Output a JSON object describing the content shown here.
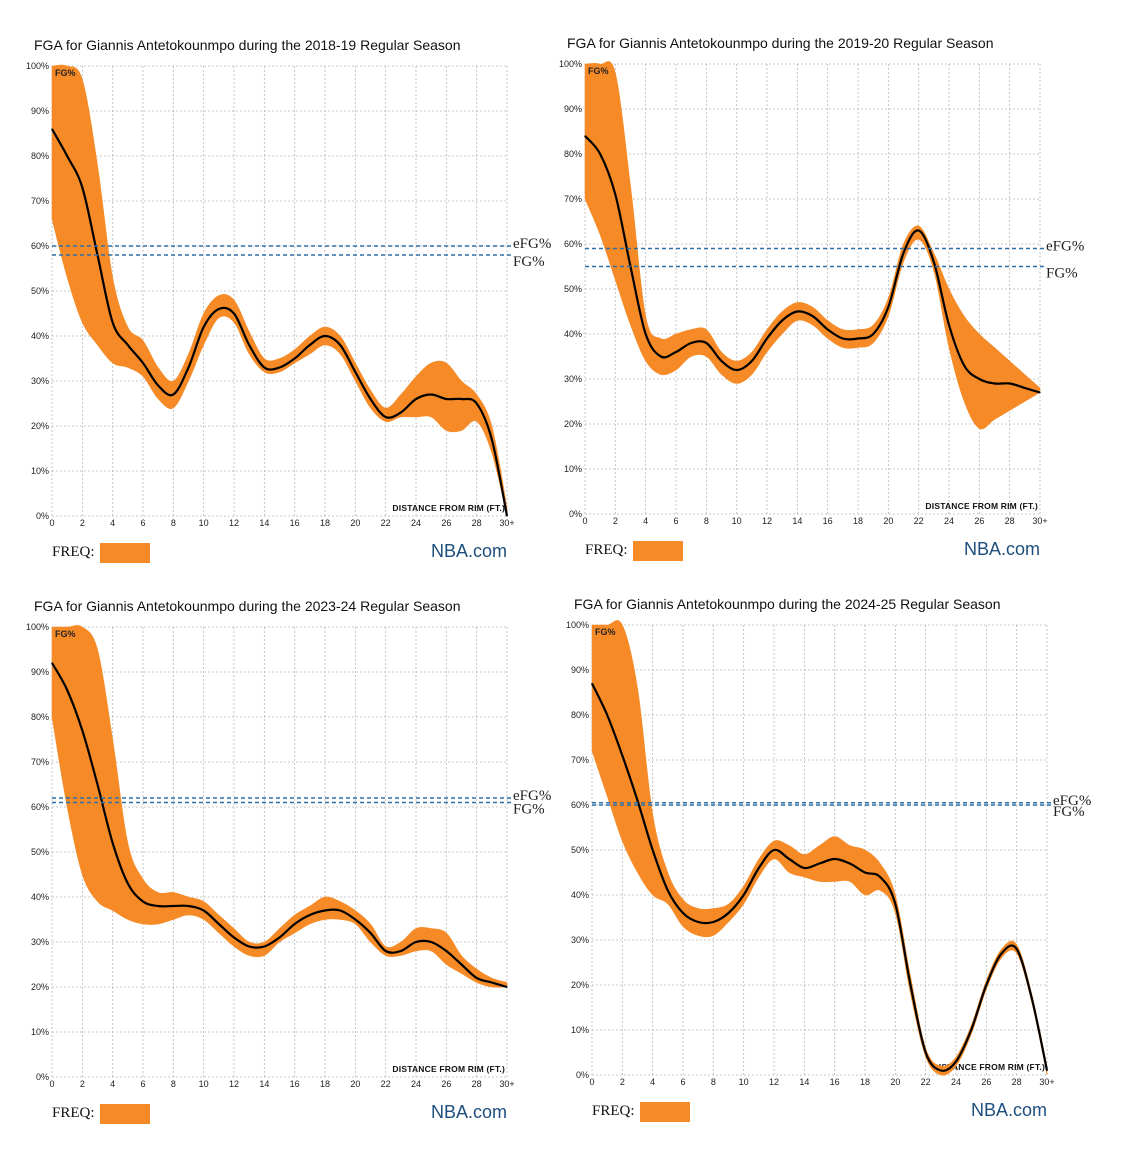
{
  "chart_data": [
    {
      "type": "line",
      "title": "FGA for Giannis Antetokounmpo during the 2018-19 Regular Season",
      "xlabel": "DISTANCE FROM RIM (FT.)",
      "ylabel": "",
      "band_label": "FG%",
      "xlim": [
        0,
        30
      ],
      "ylim": [
        0,
        100
      ],
      "x_ticks": [
        "0",
        "2",
        "4",
        "6",
        "8",
        "10",
        "12",
        "14",
        "16",
        "18",
        "20",
        "22",
        "24",
        "26",
        "28",
        "30+"
      ],
      "y_ticks": [
        "0%",
        "10%",
        "20%",
        "30%",
        "40%",
        "50%",
        "60%",
        "70%",
        "80%",
        "90%",
        "100%"
      ],
      "reference_lines": [
        {
          "label": "eFG%",
          "value": 60
        },
        {
          "label": "FG%",
          "value": 58
        }
      ],
      "series": [
        {
          "x": [
            0,
            1,
            2,
            3,
            4,
            5,
            6,
            7,
            8,
            9,
            10,
            11,
            12,
            13,
            14,
            15,
            16,
            17,
            18,
            19,
            20,
            21,
            22,
            23,
            24,
            25,
            26,
            27,
            28,
            29,
            30
          ],
          "values": [
            86,
            80,
            73,
            58,
            43,
            38,
            34,
            29,
            27,
            33,
            42,
            46,
            45,
            38,
            33,
            33,
            35,
            38,
            40,
            38,
            32,
            26,
            22,
            23,
            26,
            27,
            26,
            26,
            25,
            17,
            0
          ],
          "upper": [
            100,
            100,
            97,
            78,
            53,
            42,
            39,
            33,
            30,
            36,
            45,
            49,
            48,
            41,
            35,
            35,
            37,
            40,
            42,
            40,
            34,
            28,
            24,
            27,
            31,
            34,
            34,
            30,
            27,
            20,
            2
          ],
          "lower": [
            66,
            53,
            43,
            38,
            34,
            33,
            31,
            26,
            24,
            30,
            38,
            44,
            43,
            36,
            32,
            32,
            34,
            36,
            38,
            36,
            30,
            24,
            21,
            22,
            22,
            22,
            19,
            19,
            21,
            14,
            0
          ]
        }
      ],
      "legend": {
        "freq_label": "FREQ:",
        "brand": "NBA.com"
      }
    },
    {
      "type": "line",
      "title": "FGA for Giannis Antetokounmpo during the 2019-20 Regular Season",
      "xlabel": "DISTANCE FROM RIM (FT.)",
      "ylabel": "",
      "band_label": "FG%",
      "xlim": [
        0,
        30
      ],
      "ylim": [
        0,
        100
      ],
      "x_ticks": [
        "0",
        "2",
        "4",
        "6",
        "8",
        "10",
        "12",
        "14",
        "16",
        "18",
        "20",
        "22",
        "24",
        "26",
        "28",
        "30+"
      ],
      "y_ticks": [
        "0%",
        "10%",
        "20%",
        "30%",
        "40%",
        "50%",
        "60%",
        "70%",
        "80%",
        "90%",
        "100%"
      ],
      "reference_lines": [
        {
          "label": "eFG%",
          "value": 59
        },
        {
          "label": "FG%",
          "value": 55
        }
      ],
      "series": [
        {
          "x": [
            0,
            1,
            2,
            3,
            4,
            5,
            6,
            7,
            8,
            9,
            10,
            11,
            12,
            13,
            14,
            15,
            16,
            17,
            18,
            19,
            20,
            21,
            22,
            23,
            24,
            25,
            26,
            27,
            28,
            29,
            30
          ],
          "values": [
            84,
            80,
            71,
            55,
            40,
            35,
            36,
            38,
            38,
            34,
            32,
            34,
            39,
            43,
            45,
            44,
            41,
            39,
            39,
            40,
            46,
            58,
            63,
            56,
            42,
            33,
            30,
            29,
            29,
            28,
            27
          ],
          "upper": [
            100,
            100,
            98,
            73,
            44,
            39,
            40,
            41,
            41,
            36,
            34,
            36,
            41,
            45,
            47,
            46,
            43,
            41,
            41,
            42,
            48,
            60,
            64,
            58,
            50,
            44,
            40,
            37,
            34,
            31,
            28
          ],
          "lower": [
            70,
            62,
            52,
            42,
            34,
            31,
            32,
            35,
            35,
            31,
            29,
            31,
            36,
            40,
            43,
            42,
            39,
            37,
            37,
            38,
            44,
            56,
            61,
            54,
            37,
            25,
            19,
            21,
            23,
            25,
            27
          ]
        }
      ],
      "legend": {
        "freq_label": "FREQ:",
        "brand": "NBA.com"
      }
    },
    {
      "type": "line",
      "title": "FGA for Giannis Antetokounmpo during the 2023-24 Regular Season",
      "xlabel": "DISTANCE FROM RIM (FT.)",
      "ylabel": "",
      "band_label": "FG%",
      "xlim": [
        0,
        30
      ],
      "ylim": [
        0,
        100
      ],
      "x_ticks": [
        "0",
        "2",
        "4",
        "6",
        "8",
        "10",
        "12",
        "14",
        "16",
        "18",
        "20",
        "22",
        "24",
        "26",
        "28",
        "30+"
      ],
      "y_ticks": [
        "0%",
        "10%",
        "20%",
        "30%",
        "40%",
        "50%",
        "60%",
        "70%",
        "80%",
        "90%",
        "100%"
      ],
      "reference_lines": [
        {
          "label": "eFG%",
          "value": 62
        },
        {
          "label": "FG%",
          "value": 61
        }
      ],
      "series": [
        {
          "x": [
            0,
            1,
            2,
            3,
            4,
            5,
            6,
            7,
            8,
            9,
            10,
            11,
            12,
            13,
            14,
            15,
            16,
            17,
            18,
            19,
            20,
            21,
            22,
            23,
            24,
            25,
            26,
            27,
            28,
            29,
            30
          ],
          "values": [
            92,
            86,
            77,
            65,
            52,
            43,
            39,
            38,
            38,
            38,
            37,
            34,
            31,
            29,
            29,
            31,
            34,
            36,
            37,
            37,
            35,
            32,
            28,
            28,
            30,
            30,
            28,
            25,
            22,
            21,
            20
          ],
          "upper": [
            100,
            100,
            100,
            95,
            75,
            52,
            44,
            41,
            41,
            40,
            39,
            36,
            33,
            30,
            30,
            33,
            36,
            38,
            40,
            39,
            37,
            34,
            29,
            30,
            33,
            33,
            32,
            27,
            24,
            22,
            21
          ],
          "lower": [
            80,
            60,
            45,
            39,
            37,
            35,
            34,
            34,
            35,
            36,
            35,
            32,
            29,
            27,
            27,
            30,
            32,
            34,
            35,
            35,
            34,
            30,
            27,
            27,
            28,
            28,
            25,
            23,
            21,
            20,
            20
          ]
        }
      ],
      "legend": {
        "freq_label": "FREQ:",
        "brand": "NBA.com"
      }
    },
    {
      "type": "line",
      "title": "FGA for Giannis Antetokounmpo during the 2024-25 Regular Season",
      "xlabel": "DISTANCE FROM RIM (FT.)",
      "ylabel": "",
      "band_label": "FG%",
      "xlim": [
        0,
        30
      ],
      "ylim": [
        0,
        100
      ],
      "x_ticks": [
        "0",
        "2",
        "4",
        "6",
        "8",
        "10",
        "12",
        "14",
        "16",
        "18",
        "20",
        "22",
        "24",
        "26",
        "28",
        "30+"
      ],
      "y_ticks": [
        "0%",
        "10%",
        "20%",
        "30%",
        "40%",
        "50%",
        "60%",
        "70%",
        "80%",
        "90%",
        "100%"
      ],
      "reference_lines": [
        {
          "label": "eFG%",
          "value": 60.5
        },
        {
          "label": "FG%",
          "value": 60
        }
      ],
      "series": [
        {
          "x": [
            0,
            1,
            2,
            3,
            4,
            5,
            6,
            7,
            8,
            9,
            10,
            11,
            12,
            13,
            14,
            15,
            16,
            17,
            18,
            19,
            20,
            21,
            22,
            23,
            24,
            25,
            26,
            27,
            28,
            29,
            30
          ],
          "values": [
            87,
            80,
            71,
            61,
            50,
            41,
            36,
            34,
            34,
            36,
            40,
            46,
            50,
            48,
            46,
            47,
            48,
            47,
            45,
            44,
            38,
            20,
            5,
            1,
            3,
            10,
            20,
            27,
            28,
            17,
            1
          ],
          "upper": [
            100,
            100,
            100,
            86,
            58,
            45,
            39,
            37,
            37,
            38,
            42,
            48,
            52,
            51,
            49,
            51,
            53,
            51,
            50,
            47,
            40,
            22,
            6,
            2,
            4,
            11,
            21,
            28,
            29,
            18,
            2
          ],
          "lower": [
            72,
            62,
            52,
            45,
            40,
            38,
            33,
            31,
            31,
            34,
            38,
            44,
            48,
            45,
            44,
            43,
            43,
            43,
            40,
            41,
            36,
            18,
            4,
            0,
            2,
            9,
            19,
            26,
            27,
            16,
            0
          ]
        }
      ],
      "legend": {
        "freq_label": "FREQ:",
        "brand": "NBA.com"
      }
    }
  ],
  "style": {
    "band_color": "#f58a26",
    "line_color": "#000000",
    "ref_line_color": "#2f6fa8",
    "brand_color": "#1d4e7e",
    "grid_color": "#b7b7b7"
  }
}
